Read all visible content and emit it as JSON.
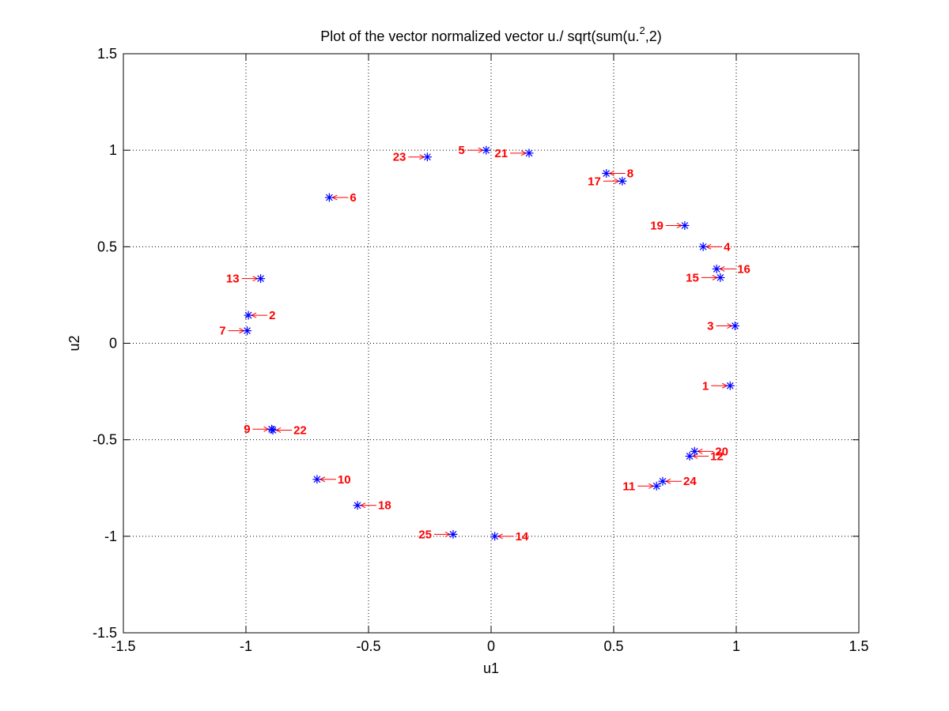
{
  "chart_data": {
    "type": "scatter",
    "title_main": "Plot of the vector normalized vector u./ sqrt(sum(u.",
    "title_sup": "2",
    "title_tail": ",2)",
    "xlabel": "u1",
    "ylabel": "u2",
    "xlim": [
      -1.5,
      1.5
    ],
    "ylim": [
      -1.5,
      1.5
    ],
    "xticks": [
      -1.5,
      -1,
      -0.5,
      0,
      0.5,
      1,
      1.5
    ],
    "yticks": [
      -1.5,
      -1,
      -0.5,
      0,
      0.5,
      1,
      1.5
    ],
    "xtick_labels": [
      "-1.5",
      "-1",
      "-0.5",
      "0",
      "0.5",
      "1",
      "1.5"
    ],
    "ytick_labels": [
      "-1.5",
      "-1",
      "-0.5",
      "0",
      "0.5",
      "1",
      "1.5"
    ],
    "grid": true,
    "marker_color": "#0000ff",
    "label_color": "#ff0000",
    "points": [
      {
        "label": "1",
        "x": 0.975,
        "y": -0.22,
        "side": "left"
      },
      {
        "label": "2",
        "x": -0.99,
        "y": 0.145,
        "side": "right"
      },
      {
        "label": "3",
        "x": 0.995,
        "y": 0.09,
        "side": "left"
      },
      {
        "label": "4",
        "x": 0.865,
        "y": 0.5,
        "side": "right"
      },
      {
        "label": "5",
        "x": -0.02,
        "y": 1.0,
        "side": "left"
      },
      {
        "label": "6",
        "x": -0.66,
        "y": 0.755,
        "side": "right"
      },
      {
        "label": "7",
        "x": -0.995,
        "y": 0.065,
        "side": "left"
      },
      {
        "label": "8",
        "x": 0.47,
        "y": 0.88,
        "side": "right"
      },
      {
        "label": "9",
        "x": -0.895,
        "y": -0.445,
        "side": "left"
      },
      {
        "label": "10",
        "x": -0.71,
        "y": -0.705,
        "side": "right"
      },
      {
        "label": "11",
        "x": 0.675,
        "y": -0.74,
        "side": "left"
      },
      {
        "label": "12",
        "x": 0.81,
        "y": -0.585,
        "side": "right"
      },
      {
        "label": "13",
        "x": -0.94,
        "y": 0.335,
        "side": "left"
      },
      {
        "label": "14",
        "x": 0.015,
        "y": -1.0,
        "side": "right"
      },
      {
        "label": "15",
        "x": 0.935,
        "y": 0.34,
        "side": "left"
      },
      {
        "label": "16",
        "x": 0.92,
        "y": 0.385,
        "side": "right"
      },
      {
        "label": "17",
        "x": 0.535,
        "y": 0.84,
        "side": "left"
      },
      {
        "label": "18",
        "x": -0.545,
        "y": -0.84,
        "side": "right"
      },
      {
        "label": "19",
        "x": 0.79,
        "y": 0.61,
        "side": "left"
      },
      {
        "label": "20",
        "x": 0.83,
        "y": -0.56,
        "side": "right"
      },
      {
        "label": "21",
        "x": 0.155,
        "y": 0.985,
        "side": "left"
      },
      {
        "label": "22",
        "x": -0.89,
        "y": -0.45,
        "side": "right"
      },
      {
        "label": "23",
        "x": -0.26,
        "y": 0.965,
        "side": "left"
      },
      {
        "label": "24",
        "x": 0.7,
        "y": -0.715,
        "side": "right"
      },
      {
        "label": "25",
        "x": -0.155,
        "y": -0.99,
        "side": "left"
      }
    ]
  }
}
